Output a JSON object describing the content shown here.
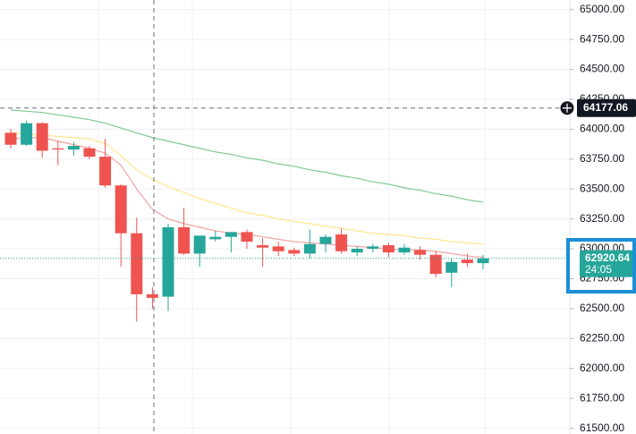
{
  "chart_data": {
    "type": "candlestick",
    "open": [
      63970,
      63870,
      64050,
      63840,
      63830,
      63840,
      63770,
      63530,
      63130,
      62620,
      62600,
      63180,
      62960,
      63080,
      63100,
      63140,
      63030,
      63020,
      62990,
      62960,
      63040,
      63120,
      62970,
      63000,
      63030,
      62970,
      62990,
      62950,
      62800,
      62910,
      62880
    ],
    "high": [
      64000,
      64070,
      64060,
      63900,
      63890,
      63860,
      63920,
      63540,
      63260,
      62680,
      63210,
      63340,
      63110,
      63150,
      63130,
      63160,
      63090,
      63060,
      63010,
      63160,
      63120,
      63170,
      63020,
      63040,
      63050,
      63040,
      63020,
      62980,
      62920,
      62960,
      62950
    ],
    "low": [
      63840,
      63860,
      63760,
      63700,
      63780,
      63750,
      63510,
      62850,
      62390,
      62500,
      62480,
      62950,
      62850,
      63060,
      62970,
      63000,
      62850,
      62940,
      62940,
      62920,
      62970,
      62960,
      62940,
      62970,
      62930,
      62950,
      62910,
      62760,
      62680,
      62850,
      62830
    ],
    "close": [
      63870,
      64050,
      63820,
      63830,
      63860,
      63770,
      63530,
      63130,
      62620,
      62590,
      63180,
      62960,
      63110,
      63100,
      63140,
      63060,
      63010,
      62980,
      62960,
      63040,
      63100,
      62980,
      63000,
      63020,
      62970,
      63010,
      62950,
      62790,
      62890,
      62880,
      62920
    ],
    "up_color": "#26a69a",
    "down_color": "#ef5350",
    "moving_averages": [
      {
        "color": "#81c995",
        "values": [
          64160,
          64150,
          64140,
          64120,
          64100,
          64080,
          64050,
          64010,
          63970,
          63930,
          63900,
          63870,
          63840,
          63810,
          63790,
          63760,
          63740,
          63710,
          63690,
          63660,
          63640,
          63610,
          63590,
          63560,
          63540,
          63510,
          63490,
          63460,
          63440,
          63410,
          63390
        ]
      },
      {
        "color": "#ffe58a",
        "values": [
          63970,
          63960,
          63950,
          63940,
          63930,
          63920,
          63880,
          63780,
          63660,
          63580,
          63520,
          63470,
          63420,
          63380,
          63340,
          63300,
          63280,
          63250,
          63230,
          63210,
          63190,
          63170,
          63150,
          63130,
          63120,
          63110,
          63090,
          63080,
          63060,
          63050,
          63040
        ]
      },
      {
        "color": "#f4a3a2",
        "values": [
          63920,
          63930,
          63930,
          63900,
          63870,
          63840,
          63800,
          63700,
          63500,
          63330,
          63250,
          63210,
          63180,
          63150,
          63130,
          63120,
          63100,
          63080,
          63060,
          63050,
          63040,
          63030,
          63020,
          63010,
          63000,
          62990,
          62990,
          62980,
          62960,
          62940,
          62930
        ]
      }
    ],
    "ylim": [
      61452,
      65080
    ],
    "yticks": [
      {
        "value": 65000,
        "label": "65000.00"
      },
      {
        "value": 64750,
        "label": "64750.00"
      },
      {
        "value": 64500,
        "label": "64500.00"
      },
      {
        "value": 64250,
        "label": "64250.00"
      },
      {
        "value": 64000,
        "label": "64000.00"
      },
      {
        "value": 63750,
        "label": "63750.00"
      },
      {
        "value": 63500,
        "label": "63500.00"
      },
      {
        "value": 63250,
        "label": "63250.00"
      },
      {
        "value": 63000,
        "label": "63000.00"
      },
      {
        "value": 62750,
        "label": "62750.00"
      },
      {
        "value": 62500,
        "label": "62500.00"
      },
      {
        "value": 62250,
        "label": "62250.00"
      },
      {
        "value": 62000,
        "label": "62000.00"
      },
      {
        "value": 61750,
        "label": "61750.00"
      },
      {
        "value": 61500,
        "label": "61500.00"
      }
    ],
    "crosshair_price": 64177.06,
    "last_price": 62920.64,
    "countdown": "24:05",
    "grid": true
  }
}
